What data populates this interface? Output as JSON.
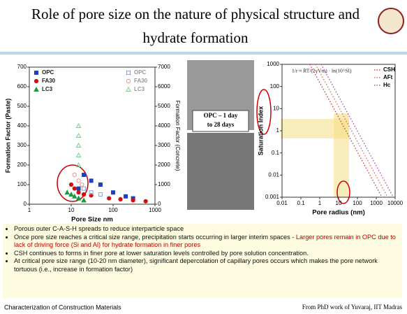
{
  "title": [
    "Role of pore size on the nature of physical structure and",
    "hydrate formation"
  ],
  "chart_data": [
    {
      "type": "scatter",
      "xlabel": "Pore Size nm",
      "ylabel": "Formation Factor (Paste)",
      "y2label": "Formation Factor (Concrete)",
      "xscale": "log",
      "xlim": [
        1,
        1000
      ],
      "xticks": [
        1,
        10,
        100,
        1000
      ],
      "ylim": [
        0,
        700
      ],
      "yticks": [
        0,
        100,
        200,
        300,
        400,
        500,
        600,
        700
      ],
      "y2lim": [
        0,
        7000
      ],
      "y2ticks": [
        0,
        1000,
        2000,
        3000,
        4000,
        5000,
        6000,
        7000
      ],
      "series": [
        {
          "name": "OPC",
          "color": "#1f3fbf",
          "marker": "square",
          "hollow": false,
          "x": [
            15,
            20,
            30,
            50,
            100,
            200,
            300
          ],
          "values": [
            80,
            150,
            120,
            100,
            60,
            40,
            30
          ]
        },
        {
          "name": "FA30",
          "color": "#d01010",
          "marker": "circle",
          "hollow": false,
          "x": [
            10,
            12,
            15,
            20,
            30,
            80,
            150,
            300,
            600
          ],
          "values": [
            100,
            80,
            60,
            50,
            45,
            30,
            25,
            20,
            15
          ]
        },
        {
          "name": "LC3",
          "color": "#1a9a3a",
          "marker": "triangle",
          "hollow": false,
          "x": [
            8,
            10,
            12,
            15,
            20
          ],
          "values": [
            60,
            50,
            40,
            30,
            20
          ]
        },
        {
          "name": "OPC",
          "color": "#8aa0e0",
          "marker": "square",
          "hollow": true,
          "axis": "y2",
          "x": [
            20,
            30,
            50
          ],
          "values": [
            800,
            600,
            500
          ]
        },
        {
          "name": "FA30",
          "color": "#e89090",
          "marker": "circle",
          "hollow": true,
          "axis": "y2",
          "x": [
            12,
            15,
            18
          ],
          "values": [
            1500,
            1200,
            1000
          ]
        },
        {
          "name": "LC3",
          "color": "#80c890",
          "marker": "triangle",
          "hollow": true,
          "axis": "y2",
          "x": [
            15,
            15,
            15,
            15,
            15
          ],
          "values": [
            4000,
            3500,
            3000,
            2500,
            2000
          ]
        }
      ]
    },
    {
      "type": "line",
      "xlabel": "Pore radius (nm)",
      "ylabel": "Saturation Index",
      "annotation": "1/r ≈ RT/(2γVm) · ln(10^SI)",
      "xscale": "log",
      "yscale": "log",
      "xlim": [
        0.01,
        10000
      ],
      "xticks": [
        0.01,
        0.1,
        1,
        10,
        100,
        1000,
        10000
      ],
      "ylim": [
        0.001,
        1000
      ],
      "yticks": [
        0.001,
        0.01,
        0.1,
        1,
        10,
        100,
        1000
      ],
      "series": [
        {
          "name": "CSH",
          "color": "#d04040",
          "x": [
            0.3,
            2000
          ],
          "values": [
            1000,
            0.001
          ]
        },
        {
          "name": "AFt",
          "color": "#e07060",
          "x": [
            0.6,
            4000
          ],
          "values": [
            1000,
            0.001
          ]
        },
        {
          "name": "Hc",
          "color": "#b050b0",
          "x": [
            1.2,
            8000
          ],
          "values": [
            1000,
            0.001
          ]
        }
      ]
    }
  ],
  "photo_caption": [
    "OPC – 1 day",
    "to 28 days"
  ],
  "bullets": [
    "Porous outer C-A-S-H spreads to reduce interparticle space",
    [
      "Once pore size reaches a critical size range, precipitation starts occurring in larger interim spaces - ",
      "Larger pores remain in OPC due to lack of driving force (Si and Al) for hydrate formation in finer pores"
    ],
    "CSH continues to forms in finer pore at lower saturation levels controlled by pore solution concentration.",
    "At critical pore size range (10-20 nm diameter), significant depercolation of capillary pores occurs which makes the pore network tortuous (i.e., increase in formation factor)"
  ],
  "footer": {
    "left": "Characterization of Construction Materials",
    "right": "From PhD work of Yuvaraj, IIT Madras"
  }
}
